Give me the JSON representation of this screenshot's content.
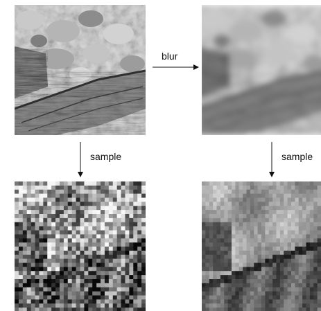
{
  "labels": {
    "blur": "blur",
    "sample_left": "sample",
    "sample_right": "sample"
  },
  "panels": [
    {
      "id": "original",
      "description_role": "rocky ground with weathered log, sharp grayscale photo"
    },
    {
      "id": "blurred",
      "description_role": "same photo after blur"
    },
    {
      "id": "sampled-original",
      "description_role": "pixelated sample of sharp photo"
    },
    {
      "id": "sampled-blurred",
      "description_role": "pixelated sample of blurred photo"
    }
  ],
  "colors": {
    "arrow": "#111111",
    "background": "#ffffff"
  }
}
